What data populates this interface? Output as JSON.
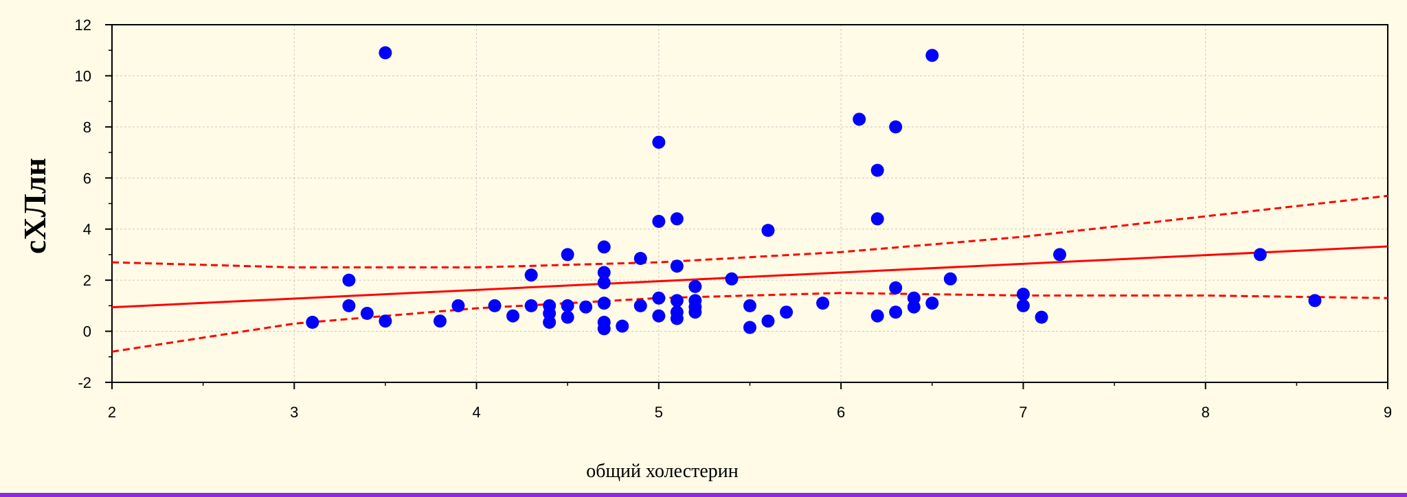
{
  "chart_data": {
    "type": "scatter",
    "xlabel": "общий холестерин",
    "ylabel": "сХЛлн",
    "xlim": [
      2,
      9
    ],
    "ylim": [
      -2,
      12
    ],
    "x_ticks": [
      2,
      3,
      4,
      5,
      6,
      7,
      8,
      9
    ],
    "y_ticks": [
      -2,
      0,
      2,
      4,
      6,
      8,
      10,
      12
    ],
    "grid": true,
    "colors": {
      "points": "#0000ff",
      "fit": "#ff0000",
      "background": "#fffbe6"
    },
    "regression": {
      "intercept": 0.26,
      "slope": 0.34
    },
    "confidence_band": {
      "x": [
        2,
        3,
        4,
        5,
        6,
        7,
        8,
        9
      ],
      "lower": [
        -0.8,
        0.3,
        0.9,
        1.3,
        1.5,
        1.4,
        1.4,
        1.3
      ],
      "upper": [
        2.7,
        2.5,
        2.5,
        2.7,
        3.1,
        3.7,
        4.5,
        5.3
      ]
    },
    "points": [
      [
        3.1,
        0.35
      ],
      [
        3.3,
        2.0
      ],
      [
        3.3,
        1.0
      ],
      [
        3.4,
        0.7
      ],
      [
        3.5,
        10.9
      ],
      [
        3.5,
        0.4
      ],
      [
        3.8,
        0.4
      ],
      [
        3.9,
        1.0
      ],
      [
        4.1,
        1.0
      ],
      [
        4.2,
        0.6
      ],
      [
        4.3,
        2.2
      ],
      [
        4.3,
        1.0
      ],
      [
        4.4,
        1.0
      ],
      [
        4.4,
        0.7
      ],
      [
        4.4,
        0.35
      ],
      [
        4.5,
        3.0
      ],
      [
        4.5,
        1.0
      ],
      [
        4.5,
        0.55
      ],
      [
        4.6,
        0.95
      ],
      [
        4.7,
        3.3
      ],
      [
        4.7,
        2.3
      ],
      [
        4.7,
        1.9
      ],
      [
        4.7,
        1.1
      ],
      [
        4.7,
        0.35
      ],
      [
        4.7,
        0.1
      ],
      [
        4.8,
        0.2
      ],
      [
        4.9,
        2.85
      ],
      [
        4.9,
        1.0
      ],
      [
        5.0,
        7.4
      ],
      [
        5.0,
        4.3
      ],
      [
        5.0,
        1.3
      ],
      [
        5.0,
        0.6
      ],
      [
        5.1,
        4.4
      ],
      [
        5.1,
        2.55
      ],
      [
        5.1,
        1.2
      ],
      [
        5.1,
        0.75
      ],
      [
        5.1,
        0.5
      ],
      [
        5.2,
        1.75
      ],
      [
        5.2,
        1.2
      ],
      [
        5.2,
        0.95
      ],
      [
        5.2,
        0.75
      ],
      [
        5.4,
        2.05
      ],
      [
        5.5,
        1.0
      ],
      [
        5.5,
        0.15
      ],
      [
        5.6,
        3.95
      ],
      [
        5.6,
        0.4
      ],
      [
        5.7,
        0.75
      ],
      [
        5.9,
        1.1
      ],
      [
        6.1,
        8.3
      ],
      [
        6.2,
        6.3
      ],
      [
        6.2,
        4.4
      ],
      [
        6.2,
        0.6
      ],
      [
        6.3,
        8.0
      ],
      [
        6.3,
        1.7
      ],
      [
        6.3,
        0.75
      ],
      [
        6.4,
        1.3
      ],
      [
        6.4,
        0.95
      ],
      [
        6.5,
        10.8
      ],
      [
        6.5,
        1.1
      ],
      [
        6.6,
        2.05
      ],
      [
        7.0,
        1.45
      ],
      [
        7.0,
        1.0
      ],
      [
        7.1,
        0.55
      ],
      [
        7.2,
        3.0
      ],
      [
        8.3,
        3.0
      ],
      [
        8.6,
        1.2
      ]
    ]
  }
}
